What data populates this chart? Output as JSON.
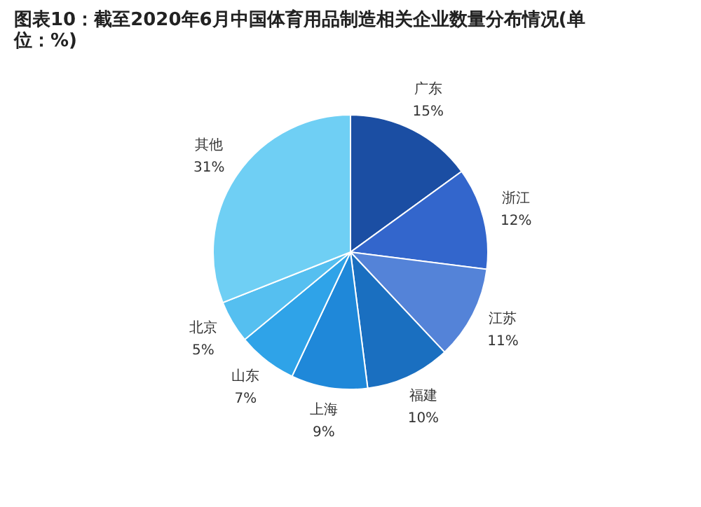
{
  "chart_data": {
    "type": "pie",
    "title": [
      "图表10：截至2020年6月中国体育用品制造相关企业数量分布情况(单",
      "位：%)"
    ],
    "categories": [
      "广东",
      "浙江",
      "江苏",
      "福建",
      "上海",
      "山东",
      "北京",
      "其他"
    ],
    "values": [
      15,
      12,
      11,
      10,
      9,
      7,
      5,
      31
    ],
    "value_labels": [
      "15%",
      "12%",
      "11%",
      "10%",
      "9%",
      "7%",
      "5%",
      "31%"
    ],
    "colors": [
      "#1b4ea3",
      "#3366cc",
      "#5483d8",
      "#1a6fc0",
      "#1f88d9",
      "#2fa3e8",
      "#55bff0",
      "#6fcff4"
    ],
    "legend": false
  }
}
